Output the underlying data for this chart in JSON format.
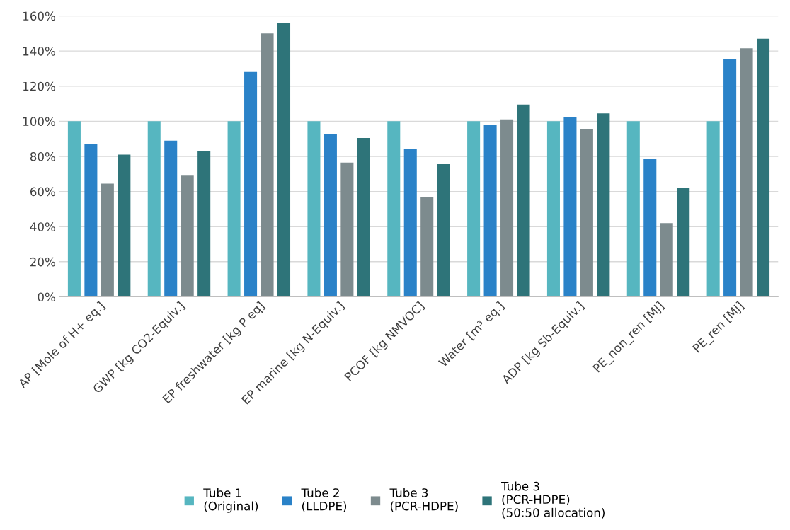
{
  "chart_data": {
    "type": "bar",
    "categories": [
      "AP [Mole of H+ eq.]",
      "GWP [kg CO2-Equiv.]",
      "EP freshwater [kg P eq]",
      "EP marine [kg N-Equiv.]",
      "PCOF [kg NMVOC]",
      "Water [m³ eq.]",
      "ADP [kg Sb-Equiv.]",
      "PE_non_ren [MJ]",
      "PE_ren [MJ]"
    ],
    "series": [
      {
        "name": "Tube 1\n(Original)",
        "color": "#56b6c0",
        "values": [
          100,
          100,
          100,
          100,
          100,
          100,
          100,
          100,
          100
        ]
      },
      {
        "name": "Tube 2\n(LLDPE)",
        "color": "#2a82c8",
        "values": [
          87,
          89,
          128,
          92.5,
          84,
          98,
          102.5,
          78.5,
          135.5
        ]
      },
      {
        "name": "Tube 3\n(PCR-HDPE)",
        "color": "#7d8b8e",
        "values": [
          64.5,
          69,
          150,
          76.5,
          57,
          101,
          95.5,
          42,
          141.5
        ]
      },
      {
        "name": "Tube 3\n(PCR-HDPE)\n(50:50 allocation)",
        "color": "#2e7479",
        "values": [
          81,
          83,
          156,
          90.5,
          75.5,
          109.5,
          104.5,
          62,
          147
        ]
      }
    ],
    "ylim": [
      0,
      160
    ],
    "yticks": [
      {
        "value": 0,
        "label": "0%"
      },
      {
        "value": 20,
        "label": "20%"
      },
      {
        "value": 40,
        "label": "40%"
      },
      {
        "value": 60,
        "label": "60%"
      },
      {
        "value": 80,
        "label": "80%"
      },
      {
        "value": 100,
        "label": "100%"
      },
      {
        "value": 120,
        "label": "120%"
      },
      {
        "value": 140,
        "label": "140%"
      },
      {
        "value": 160,
        "label": "160%"
      }
    ],
    "grid": "y",
    "legend": "bottom"
  }
}
